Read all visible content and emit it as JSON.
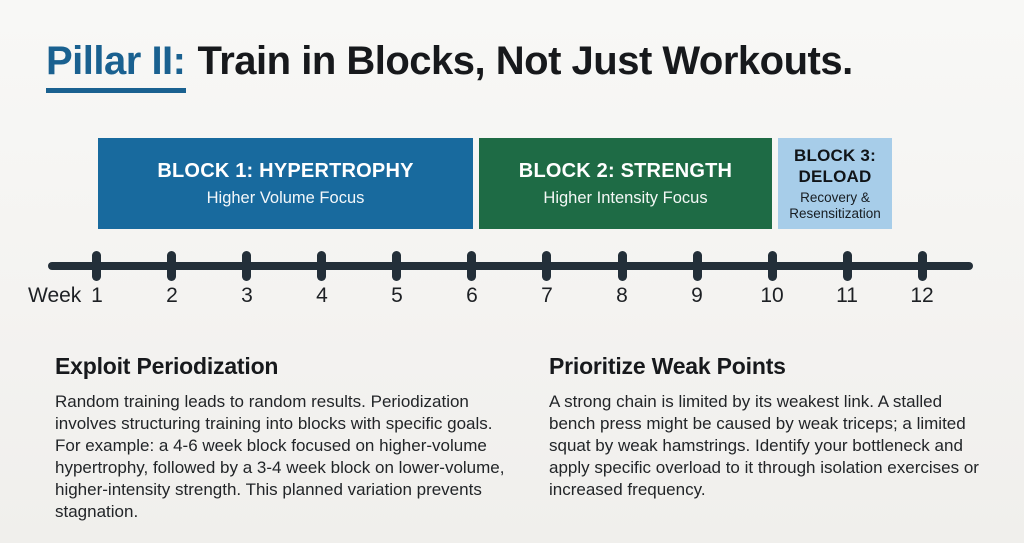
{
  "title": {
    "prefix": "Pillar II:",
    "main": "Train in Blocks, Not Just Workouts."
  },
  "blocks": [
    {
      "label": "BLOCK 1: HYPERTROPHY",
      "subtitle": "Higher Volume Focus",
      "bg": "#186a9e",
      "text_color": "#ffffff"
    },
    {
      "label": "BLOCK 2: STRENGTH",
      "subtitle": "Higher Intensity Focus",
      "bg": "#1e6b45",
      "text_color": "#ffffff"
    },
    {
      "label": "BLOCK 3: DELOAD",
      "subtitle": "Recovery & Resensitization",
      "bg": "#a7cde9",
      "text_color": "#101418"
    }
  ],
  "timeline": {
    "axis_label": "Week",
    "weeks": [
      "1",
      "2",
      "3",
      "4",
      "5",
      "6",
      "7",
      "8",
      "9",
      "10",
      "11",
      "12"
    ],
    "line_color": "#232f39"
  },
  "sections": [
    {
      "heading": "Exploit Periodization",
      "body": "Random training leads to random results. Periodization involves structuring training into blocks with specific goals. For example: a 4-6 week block focused on higher-volume hypertrophy, followed by a 3-4 week block on lower-volume, higher-intensity strength. This planned variation prevents stagnation."
    },
    {
      "heading": "Prioritize Weak Points",
      "body": "A strong chain is limited by its weakest link. A stalled bench press might be caused by weak triceps; a limited squat by weak hamstrings. Identify your bottleneck and apply specific overload to it through isolation exercises or increased frequency."
    }
  ],
  "colors": {
    "accent_blue": "#1a6190",
    "block1_bg": "#186a9e",
    "block2_bg": "#1e6b45",
    "block3_bg": "#a7cde9",
    "timeline": "#232f39",
    "background": "#f4f3f1",
    "heading_text": "#17191c"
  }
}
